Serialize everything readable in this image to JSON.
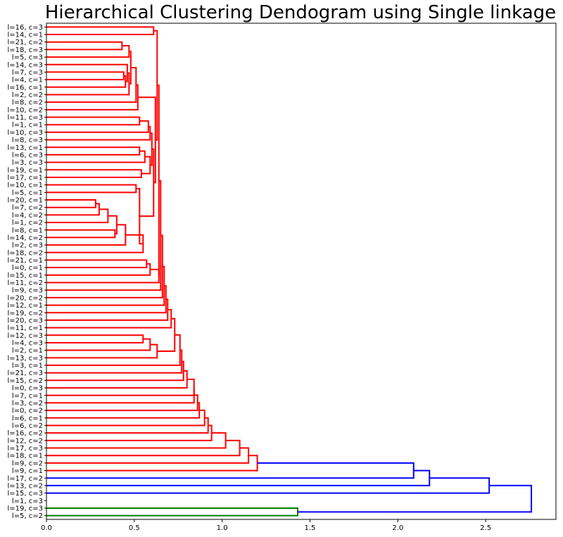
{
  "chart_data": {
    "type": "dendrogram",
    "orientation": "horizontal",
    "title": "Hierarchical Clustering Dendogram using Single linkage",
    "xlim": [
      0,
      2.9
    ],
    "xticks": [
      0.0,
      0.5,
      1.0,
      1.5,
      2.0,
      2.5
    ],
    "xtick_labels": [
      "0.0",
      "0.5",
      "1.0",
      "1.5",
      "2.0",
      "2.5"
    ],
    "colors": {
      "cluster_1": "#ff0000",
      "cluster_2": "#008000",
      "root": "#0000ff"
    },
    "leaves": [
      "l=16, c=3",
      "l=14, c=1",
      "l=21, c=2",
      "l=18, c=3",
      "l=5, c=3",
      "l=14, c=3",
      "l=7, c=3",
      "l=4, c=1",
      "l=16, c=1",
      "l=2, c=2",
      "l=8, c=2",
      "l=10, c=2",
      "l=11, c=3",
      "l=1, c=1",
      "l=10, c=3",
      "l=8, c=3",
      "l=13, c=1",
      "l=6, c=3",
      "l=3, c=3",
      "l=19, c=1",
      "l=17, c=1",
      "l=10, c=1",
      "l=5, c=1",
      "l=20, c=1",
      "l=7, c=2",
      "l=4, c=2",
      "l=1, c=2",
      "l=8, c=1",
      "l=14, c=2",
      "l=2, c=3",
      "l=18, c=2",
      "l=21, c=1",
      "l=0, c=1",
      "l=15, c=1",
      "l=11, c=2",
      "l=9, c=3",
      "l=20, c=2",
      "l=12, c=1",
      "l=19, c=2",
      "l=20, c=3",
      "l=11, c=1",
      "l=12, c=3",
      "l=4, c=3",
      "l=2, c=1",
      "l=13, c=3",
      "l=3, c=1",
      "l=21, c=3",
      "l=15, c=2",
      "l=0, c=3",
      "l=7, c=1",
      "l=3, c=2",
      "l=0, c=2",
      "l=6, c=1",
      "l=6, c=2",
      "l=16, c=2",
      "l=12, c=2",
      "l=17, c=3",
      "l=18, c=1",
      "l=9, c=2",
      "l=9, c=1",
      "l=17, c=2",
      "l=13, c=2",
      "l=15, c=3",
      "l=1, c=3",
      "l=19, c=3",
      "l=5, c=2"
    ],
    "merges": [
      {
        "id": "m1",
        "a": 0,
        "b": 1,
        "height": 0.61,
        "color": "#ff0000"
      },
      {
        "id": "m2",
        "a": 2,
        "b": 3,
        "height": 0.43,
        "color": "#ff0000"
      },
      {
        "id": "m3",
        "a": 6,
        "b": 7,
        "height": 0.44,
        "color": "#ff0000"
      },
      {
        "id": "m4",
        "a": "m3",
        "b": 8,
        "height": 0.45,
        "color": "#ff0000"
      },
      {
        "id": "m5",
        "a": 5,
        "b": "m4",
        "height": 0.46,
        "color": "#ff0000"
      },
      {
        "id": "m6",
        "a": "m5",
        "b": 9,
        "height": 0.47,
        "color": "#ff0000"
      },
      {
        "id": "m7",
        "a": "m2",
        "b": 4,
        "height": 0.47,
        "color": "#ff0000"
      },
      {
        "id": "m8",
        "a": "m7",
        "b": "m6",
        "height": 0.48,
        "color": "#ff0000"
      },
      {
        "id": "m9",
        "a": "m8",
        "b": 10,
        "height": 0.51,
        "color": "#ff0000"
      },
      {
        "id": "m10",
        "a": "m9",
        "b": 11,
        "height": 0.52,
        "color": "#ff0000"
      },
      {
        "id": "m11",
        "a": 12,
        "b": 13,
        "height": 0.53,
        "color": "#ff0000"
      },
      {
        "id": "m12",
        "a": "m11",
        "b": 14,
        "height": 0.58,
        "color": "#ff0000"
      },
      {
        "id": "m13",
        "a": "m12",
        "b": 15,
        "height": 0.59,
        "color": "#ff0000"
      },
      {
        "id": "m14",
        "a": 16,
        "b": 17,
        "height": 0.53,
        "color": "#ff0000"
      },
      {
        "id": "m15",
        "a": "m14",
        "b": 18,
        "height": 0.56,
        "color": "#ff0000"
      },
      {
        "id": "m16",
        "a": 19,
        "b": 20,
        "height": 0.54,
        "color": "#ff0000"
      },
      {
        "id": "m17",
        "a": "m15",
        "b": "m16",
        "height": 0.59,
        "color": "#ff0000"
      },
      {
        "id": "m18",
        "a": "m13",
        "b": "m17",
        "height": 0.6,
        "color": "#ff0000"
      },
      {
        "id": "m19",
        "a": 21,
        "b": 22,
        "height": 0.51,
        "color": "#ff0000"
      },
      {
        "id": "m20",
        "a": 23,
        "b": 24,
        "height": 0.28,
        "color": "#ff0000"
      },
      {
        "id": "m21",
        "a": "m20",
        "b": 25,
        "height": 0.3,
        "color": "#ff0000"
      },
      {
        "id": "m22",
        "a": "m21",
        "b": 26,
        "height": 0.35,
        "color": "#ff0000"
      },
      {
        "id": "m23",
        "a": 27,
        "b": 28,
        "height": 0.39,
        "color": "#ff0000"
      },
      {
        "id": "m24",
        "a": "m22",
        "b": "m23",
        "height": 0.4,
        "color": "#ff0000"
      },
      {
        "id": "m25",
        "a": "m24",
        "b": 29,
        "height": 0.45,
        "color": "#ff0000"
      },
      {
        "id": "m26",
        "a": "m25",
        "b": 30,
        "height": 0.55,
        "color": "#ff0000"
      },
      {
        "id": "m27",
        "a": "m19",
        "b": "m26",
        "height": 0.53,
        "color": "#ff0000"
      },
      {
        "id": "m28",
        "a": "m18",
        "b": "m27",
        "height": 0.61,
        "color": "#ff0000"
      },
      {
        "id": "m29",
        "a": "m10",
        "b": "m28",
        "height": 0.62,
        "color": "#ff0000"
      },
      {
        "id": "m30",
        "a": "m1",
        "b": "m29",
        "height": 0.63,
        "color": "#ff0000"
      },
      {
        "id": "m31",
        "a": 31,
        "b": 32,
        "height": 0.57,
        "color": "#ff0000"
      },
      {
        "id": "m32",
        "a": "m31",
        "b": 33,
        "height": 0.59,
        "color": "#ff0000"
      },
      {
        "id": "m33",
        "a": "m32",
        "b": 34,
        "height": 0.64,
        "color": "#ff0000"
      },
      {
        "id": "m34",
        "a": "m30",
        "b": "m33",
        "height": 0.64,
        "color": "#ff0000"
      },
      {
        "id": "m35",
        "a": "m34",
        "b": 35,
        "height": 0.65,
        "color": "#ff0000"
      },
      {
        "id": "m36",
        "a": "m35",
        "b": 36,
        "height": 0.66,
        "color": "#ff0000"
      },
      {
        "id": "m37",
        "a": "m36",
        "b": 37,
        "height": 0.67,
        "color": "#ff0000"
      },
      {
        "id": "m38",
        "a": "m37",
        "b": 38,
        "height": 0.68,
        "color": "#ff0000"
      },
      {
        "id": "m39",
        "a": "m38",
        "b": 39,
        "height": 0.69,
        "color": "#ff0000"
      },
      {
        "id": "m40",
        "a": "m39",
        "b": 40,
        "height": 0.71,
        "color": "#ff0000"
      },
      {
        "id": "m41",
        "a": 41,
        "b": 42,
        "height": 0.55,
        "color": "#ff0000"
      },
      {
        "id": "m42",
        "a": "m41",
        "b": 43,
        "height": 0.59,
        "color": "#ff0000"
      },
      {
        "id": "m43",
        "a": "m42",
        "b": 44,
        "height": 0.63,
        "color": "#ff0000"
      },
      {
        "id": "m44",
        "a": "m40",
        "b": "m43",
        "height": 0.73,
        "color": "#ff0000"
      },
      {
        "id": "m45",
        "a": "m44",
        "b": 45,
        "height": 0.76,
        "color": "#ff0000"
      },
      {
        "id": "m46",
        "a": "m45",
        "b": 46,
        "height": 0.77,
        "color": "#ff0000"
      },
      {
        "id": "m47",
        "a": "m46",
        "b": 47,
        "height": 0.78,
        "color": "#ff0000"
      },
      {
        "id": "m48",
        "a": "m47",
        "b": 48,
        "height": 0.8,
        "color": "#ff0000"
      },
      {
        "id": "m49",
        "a": "m48",
        "b": 49,
        "height": 0.84,
        "color": "#ff0000"
      },
      {
        "id": "m50",
        "a": "m49",
        "b": 50,
        "height": 0.84,
        "color": "#ff0000"
      },
      {
        "id": "m51",
        "a": "m50",
        "b": 51,
        "height": 0.86,
        "color": "#ff0000"
      },
      {
        "id": "m52",
        "a": "m51",
        "b": 52,
        "height": 0.87,
        "color": "#ff0000"
      },
      {
        "id": "m53",
        "a": "m52",
        "b": 53,
        "height": 0.9,
        "color": "#ff0000"
      },
      {
        "id": "m54",
        "a": "m53",
        "b": 54,
        "height": 0.92,
        "color": "#ff0000"
      },
      {
        "id": "m55",
        "a": "m54",
        "b": 55,
        "height": 0.94,
        "color": "#ff0000"
      },
      {
        "id": "m56",
        "a": "m55",
        "b": 56,
        "height": 1.02,
        "color": "#ff0000"
      },
      {
        "id": "m57",
        "a": "m56",
        "b": 57,
        "height": 1.1,
        "color": "#ff0000"
      },
      {
        "id": "m58",
        "a": "m57",
        "b": 58,
        "height": 1.15,
        "color": "#ff0000"
      },
      {
        "id": "m59",
        "a": "m58",
        "b": 59,
        "height": 1.2,
        "color": "#ff0000"
      },
      {
        "id": "m60",
        "a": "m59",
        "b": 60,
        "height": 2.09,
        "color": "#0000ff"
      },
      {
        "id": "m61",
        "a": "m60",
        "b": 61,
        "height": 2.18,
        "color": "#0000ff"
      },
      {
        "id": "m62",
        "a": "m61",
        "b": 62,
        "height": 2.52,
        "color": "#0000ff"
      },
      {
        "id": "m63",
        "a": 64,
        "b": 65,
        "height": 1.43,
        "color": "#008000"
      },
      {
        "id": "m64",
        "a": "m62",
        "b": "m63",
        "height": 2.76,
        "color": "#0000ff"
      }
    ]
  }
}
